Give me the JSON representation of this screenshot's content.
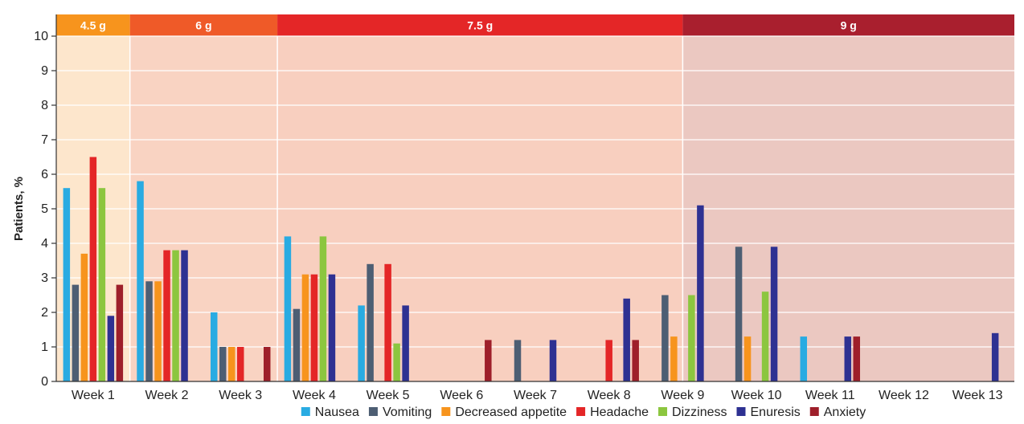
{
  "chart_data": {
    "type": "bar",
    "title": "",
    "xlabel": "",
    "ylabel": "Patients, %",
    "ylim": [
      0,
      10
    ],
    "yticks": [
      "0",
      "1",
      "2",
      "3",
      "4",
      "5",
      "6",
      "7",
      "8",
      "9",
      "10"
    ],
    "grid": true,
    "legend_position": "bottom",
    "categories": [
      "Week 1",
      "Week 2",
      "Week 3",
      "Week 4",
      "Week 5",
      "Week 6",
      "Week 7",
      "Week 8",
      "Week 9",
      "Week 10",
      "Week 11",
      "Week 12",
      "Week 13"
    ],
    "dose_bands": [
      {
        "label": "4.5 g",
        "from_week": 1,
        "to_week": 1,
        "header_color": "#f7941d",
        "fill_color": "#fde6cc"
      },
      {
        "label": "6 g",
        "from_week": 2,
        "to_week": 3,
        "header_color": "#ef5a28",
        "fill_color": "#f9d3c2"
      },
      {
        "label": "7.5 g",
        "from_week": 4,
        "to_week": 9,
        "header_color": "#e42627",
        "fill_color": "#f8cfbf"
      },
      {
        "label": "9 g",
        "from_week": 9,
        "to_week": 13,
        "header_color": "#a91f2e",
        "fill_color": "#ebc8c1"
      }
    ],
    "series": [
      {
        "name": "Nausea",
        "color": "#29abe2",
        "values": [
          5.6,
          5.8,
          2.0,
          4.2,
          2.2,
          0,
          0,
          0,
          0,
          0,
          1.3,
          0,
          0
        ]
      },
      {
        "name": "Vomiting",
        "color": "#4d5e73",
        "values": [
          2.8,
          2.9,
          1.0,
          2.1,
          3.4,
          0,
          1.2,
          0,
          2.5,
          3.9,
          0,
          0,
          0
        ]
      },
      {
        "name": "Decreased appetite",
        "color": "#f7941d",
        "values": [
          3.7,
          2.9,
          1.0,
          3.1,
          0,
          0,
          0,
          0,
          1.3,
          1.3,
          0,
          0,
          0
        ]
      },
      {
        "name": "Headache",
        "color": "#e42627",
        "values": [
          6.5,
          3.8,
          1.0,
          3.1,
          3.4,
          0,
          0,
          1.2,
          0,
          0,
          0,
          0,
          0
        ]
      },
      {
        "name": "Dizziness",
        "color": "#8cc63f",
        "values": [
          5.6,
          3.8,
          0,
          4.2,
          1.1,
          0,
          0,
          0,
          2.5,
          2.6,
          0,
          0,
          0
        ]
      },
      {
        "name": "Enuresis",
        "color": "#2e3192",
        "values": [
          1.9,
          3.8,
          0,
          3.1,
          2.2,
          0,
          1.2,
          2.4,
          5.1,
          3.9,
          1.3,
          0,
          1.4
        ]
      },
      {
        "name": "Anxiety",
        "color": "#9e1f2a",
        "values": [
          2.8,
          0,
          1.0,
          0,
          0,
          1.2,
          0,
          1.2,
          0,
          0,
          1.3,
          0,
          0
        ]
      }
    ]
  }
}
